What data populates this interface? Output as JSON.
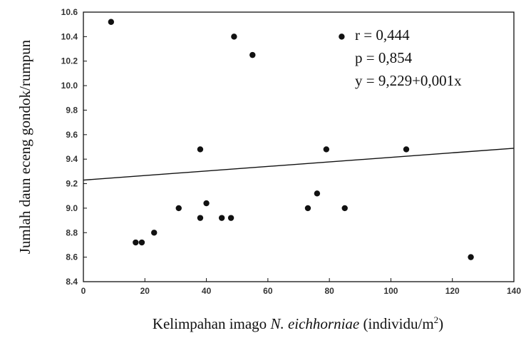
{
  "chart_data": {
    "type": "scatter",
    "xlabel": {
      "prefix": "Kelimpahan imago ",
      "species": "N. eichhorniae",
      "suffix_base": " (individu/m",
      "suffix_sup": "2",
      "suffix_end": ")"
    },
    "ylabel": "Jumlah daun eceng gondok/rumpun",
    "xlim": [
      0,
      140
    ],
    "ylim": [
      8.4,
      10.6
    ],
    "xticks": [
      "0",
      "20",
      "40",
      "60",
      "80",
      "100",
      "120",
      "140"
    ],
    "yticks": [
      "8.4",
      "8.6",
      "8.8",
      "9.0",
      "9.2",
      "9.4",
      "9.6",
      "9.8",
      "10.0",
      "10.2",
      "10.4",
      "10.6"
    ],
    "points": [
      {
        "x": 9,
        "y": 10.52
      },
      {
        "x": 49,
        "y": 10.4
      },
      {
        "x": 55,
        "y": 10.25
      },
      {
        "x": 38,
        "y": 9.48
      },
      {
        "x": 79,
        "y": 9.48
      },
      {
        "x": 105,
        "y": 9.48
      },
      {
        "x": 17,
        "y": 8.72
      },
      {
        "x": 19,
        "y": 8.72
      },
      {
        "x": 23,
        "y": 8.8
      },
      {
        "x": 31,
        "y": 9.0
      },
      {
        "x": 38,
        "y": 8.92
      },
      {
        "x": 40,
        "y": 9.04
      },
      {
        "x": 45,
        "y": 8.92
      },
      {
        "x": 48,
        "y": 8.92
      },
      {
        "x": 73,
        "y": 9.0
      },
      {
        "x": 76,
        "y": 9.12
      },
      {
        "x": 85,
        "y": 9.0
      },
      {
        "x": 126,
        "y": 8.6
      }
    ],
    "regression": {
      "intercept": 9.229,
      "slope": 0.001
    },
    "annotations": [
      "r = 0,444",
      "p = 0,854",
      "y = 9,229+0,001x"
    ],
    "legend_marker": {
      "x": 84,
      "y": 10.4
    },
    "grid": false
  }
}
